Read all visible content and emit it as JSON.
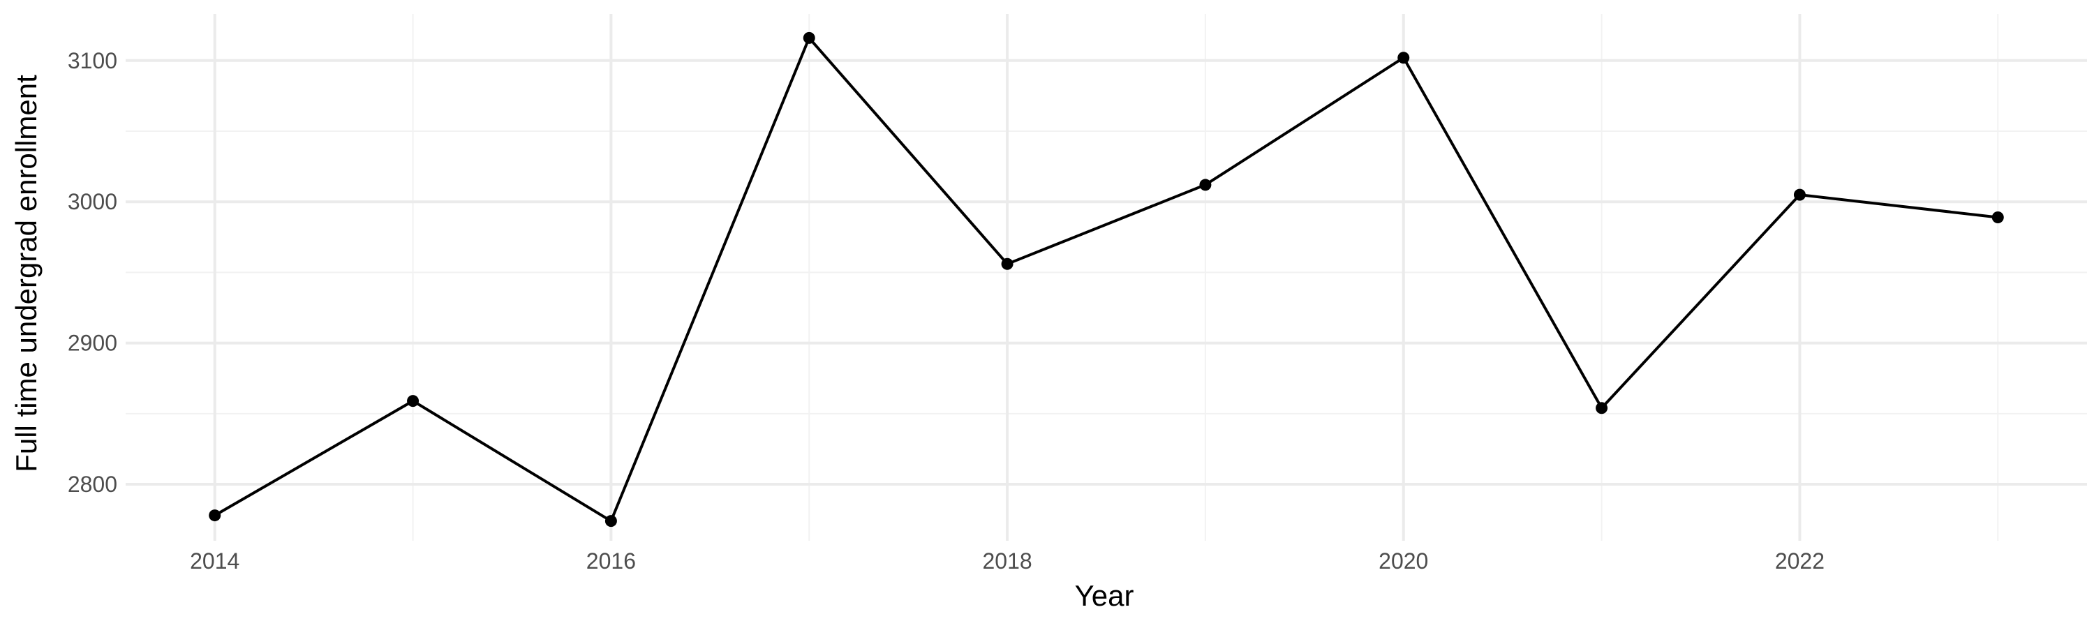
{
  "chart_data": {
    "type": "line",
    "title": "",
    "xlabel": "Year",
    "ylabel": "Full time undergrad enrollment",
    "x": [
      2014,
      2015,
      2016,
      2017,
      2018,
      2019,
      2020,
      2021,
      2022,
      2023
    ],
    "series": [
      {
        "values": [
          2778,
          2859,
          2774,
          3116,
          2956,
          3012,
          3102,
          2854,
          3005,
          2989
        ]
      }
    ],
    "xlim": [
      2013.55,
      2023.45
    ],
    "ylim": [
      2760,
      3133
    ],
    "x_ticks": [
      2014,
      2016,
      2018,
      2020,
      2022
    ],
    "y_ticks": [
      2800,
      2900,
      3000,
      3100
    ],
    "x_tick_labels": [
      "2014",
      "2016",
      "2018",
      "2020",
      "2022"
    ],
    "y_tick_labels": [
      "2800",
      "2900",
      "3000",
      "3100"
    ],
    "grid": true,
    "legend": "none",
    "colors": {
      "line": "#000000",
      "point": "#000000",
      "grid_major": "#ebebeb",
      "grid_minor": "#f2f2f2",
      "tick_text": "#4d4d4d",
      "background": "#ffffff"
    }
  }
}
